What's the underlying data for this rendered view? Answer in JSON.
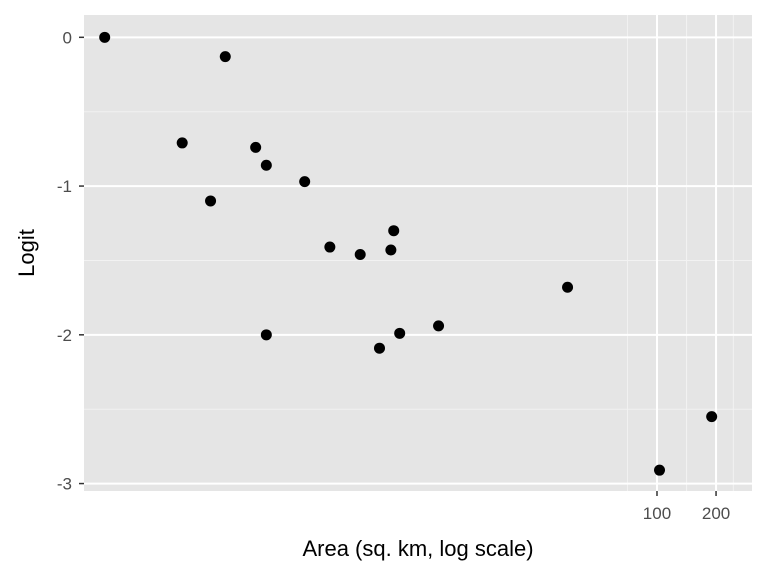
{
  "chart_data": {
    "type": "scatter",
    "title": "",
    "xlabel": "Area (sq. km, log scale)",
    "ylabel": "Logit",
    "x_scale": "log",
    "xlim": [
      0.12,
      305
    ],
    "ylim": [
      -3.05,
      0.15
    ],
    "x_ticks": [
      100,
      200
    ],
    "x_tick_labels": [
      "100",
      "200"
    ],
    "y_ticks": [
      0,
      -1,
      -2,
      -3
    ],
    "y_tick_labels": [
      "0",
      "-1",
      "-2",
      "-3"
    ],
    "grid": true,
    "legend": "none",
    "colors": {
      "panel": "#e5e5e5",
      "grid_major": "#ffffff",
      "grid_minor": "#f2f2f2",
      "point": "#000000",
      "tick": "#333333"
    },
    "points": [
      {
        "x": 0.153,
        "y": 0.0
      },
      {
        "x": 0.63,
        "y": -0.13
      },
      {
        "x": 0.38,
        "y": -0.71
      },
      {
        "x": 0.9,
        "y": -0.74
      },
      {
        "x": 1.02,
        "y": -0.86
      },
      {
        "x": 1.6,
        "y": -0.97
      },
      {
        "x": 0.53,
        "y": -1.1
      },
      {
        "x": 2.15,
        "y": -1.41
      },
      {
        "x": 3.07,
        "y": -1.46
      },
      {
        "x": 4.55,
        "y": -1.3
      },
      {
        "x": 4.4,
        "y": -1.43
      },
      {
        "x": 1.02,
        "y": -2.0
      },
      {
        "x": 3.85,
        "y": -2.09
      },
      {
        "x": 4.88,
        "y": -1.99
      },
      {
        "x": 7.7,
        "y": -1.94
      },
      {
        "x": 35.0,
        "y": -1.68
      },
      {
        "x": 103.0,
        "y": -2.91
      },
      {
        "x": 190.0,
        "y": -2.55
      }
    ]
  }
}
